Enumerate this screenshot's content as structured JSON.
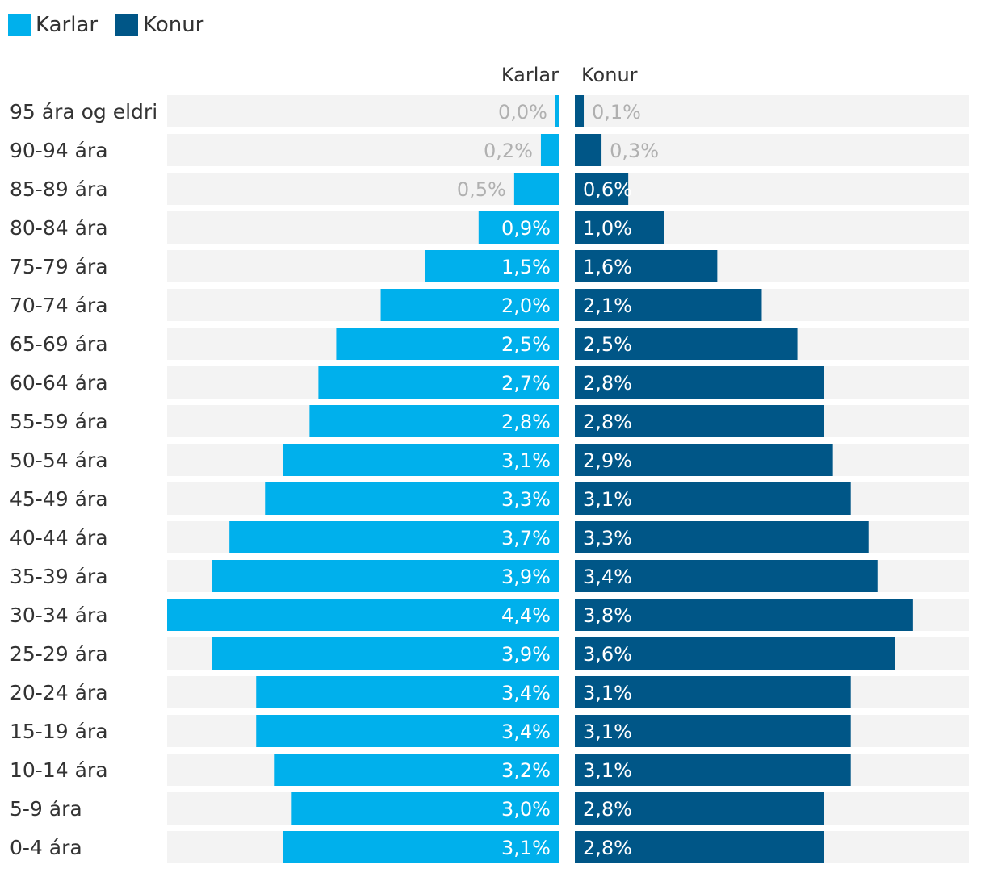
{
  "chart_data": {
    "type": "bar",
    "orientation": "horizontal-butterfly",
    "categories": [
      "95 ára og eldri",
      "90-94 ára",
      "85-89 ára",
      "80-84 ára",
      "75-79 ára",
      "70-74 ára",
      "65-69 ára",
      "60-64 ára",
      "55-59 ára",
      "50-54 ára",
      "45-49 ára",
      "40-44 ára",
      "35-39 ára",
      "30-34 ára",
      "25-29 ára",
      "20-24 ára",
      "15-19 ára",
      "10-14 ára",
      "5-9 ára",
      "0-4 ára"
    ],
    "series": [
      {
        "name": "Karlar",
        "color": "#00b0ec",
        "side": "left",
        "values": [
          0.0,
          0.2,
          0.5,
          0.9,
          1.5,
          2.0,
          2.5,
          2.7,
          2.8,
          3.1,
          3.3,
          3.7,
          3.9,
          4.4,
          3.9,
          3.4,
          3.4,
          3.2,
          3.0,
          3.1
        ],
        "labels": [
          "0,0%",
          "0,2%",
          "0,5%",
          "0,9%",
          "1,5%",
          "2,0%",
          "2,5%",
          "2,7%",
          "2,8%",
          "3,1%",
          "3,3%",
          "3,7%",
          "3,9%",
          "4,4%",
          "3,9%",
          "3,4%",
          "3,4%",
          "3,2%",
          "3,0%",
          "3,1%"
        ]
      },
      {
        "name": "Konur",
        "color": "#005687",
        "side": "right",
        "values": [
          0.1,
          0.3,
          0.6,
          1.0,
          1.6,
          2.1,
          2.5,
          2.8,
          2.8,
          2.9,
          3.1,
          3.3,
          3.4,
          3.8,
          3.6,
          3.1,
          3.1,
          3.1,
          2.8,
          2.8
        ],
        "labels": [
          "0,1%",
          "0,3%",
          "0,6%",
          "1,0%",
          "1,6%",
          "2,1%",
          "2,5%",
          "2,8%",
          "2,8%",
          "2,9%",
          "3,1%",
          "3,3%",
          "3,4%",
          "3,8%",
          "3,6%",
          "3,1%",
          "3,1%",
          "3,1%",
          "2,8%",
          "2,8%"
        ]
      }
    ],
    "column_headers": {
      "left": "Karlar",
      "right": "Konur"
    },
    "xlim": [
      0,
      4.4
    ],
    "legend": "top-left",
    "grid": false,
    "background_track_color": "#f3f3f3"
  }
}
